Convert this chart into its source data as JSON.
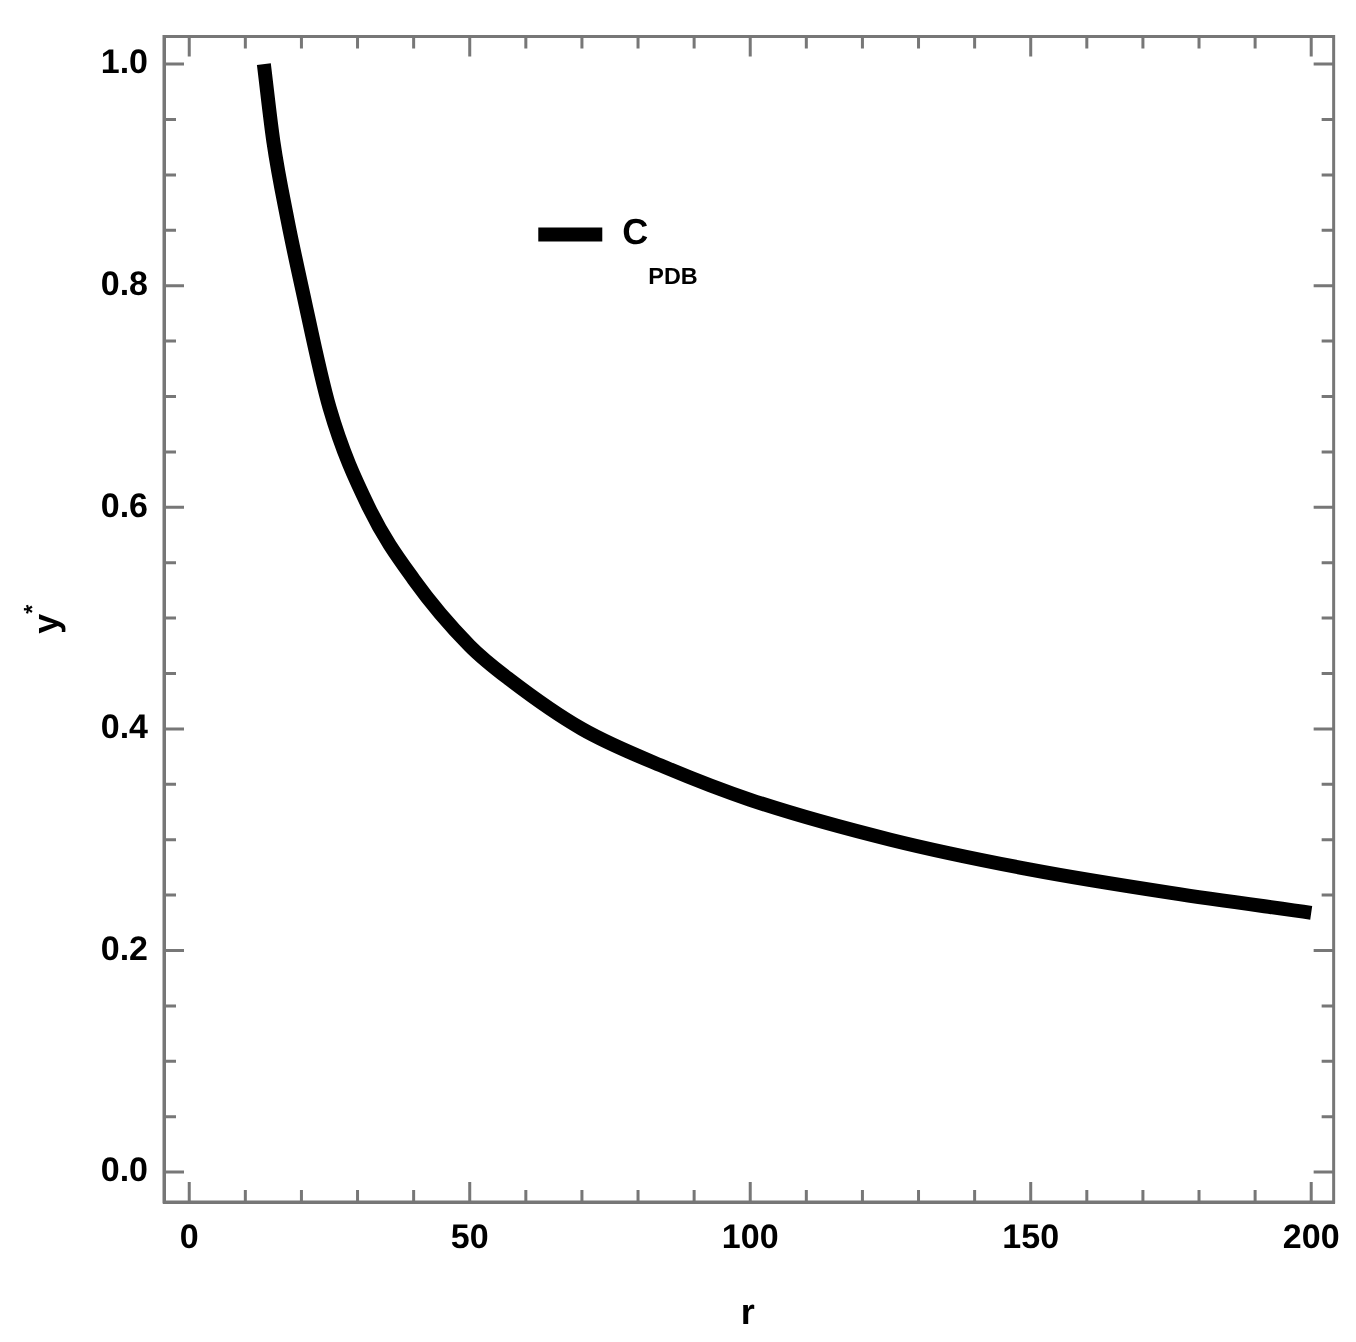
{
  "chart_data": {
    "type": "line",
    "xlabel": "r",
    "ylabel": "y$^{*}$",
    "xlim": [
      -4.5,
      204
    ],
    "ylim": [
      -0.027,
      1.025
    ],
    "xticks": [
      {
        "value": 0,
        "label": "0"
      },
      {
        "value": 10,
        "label": null
      },
      {
        "value": 20,
        "label": null
      },
      {
        "value": 30,
        "label": null
      },
      {
        "value": 40,
        "label": null
      },
      50,
      {
        "value": 60,
        "label": null
      },
      {
        "value": 70,
        "label": null
      },
      {
        "value": 80,
        "label": null
      },
      {
        "value": 90,
        "label": null
      },
      100,
      {
        "value": 110,
        "label": null
      },
      {
        "value": 120,
        "label": null
      },
      {
        "value": 130,
        "label": null
      },
      {
        "value": 140,
        "label": null
      },
      150,
      {
        "value": 160,
        "label": null
      },
      {
        "value": 170,
        "label": null
      },
      {
        "value": 180,
        "label": null
      },
      {
        "value": 190,
        "label": null
      },
      200
    ],
    "yticks": [
      {
        "value": 0,
        "label": "0.0"
      },
      {
        "value": 0.05,
        "label": null
      },
      {
        "value": 0.1,
        "label": null
      },
      {
        "value": 0.15,
        "label": null
      },
      0.2,
      {
        "value": 0.25,
        "label": null
      },
      {
        "value": 0.3,
        "label": null
      },
      {
        "value": 0.35,
        "label": null
      },
      0.4,
      {
        "value": 0.45,
        "label": null
      },
      {
        "value": 0.5,
        "label": null
      },
      {
        "value": 0.55,
        "label": null
      },
      0.6,
      {
        "value": 0.65,
        "label": null
      },
      {
        "value": 0.7,
        "label": null
      },
      {
        "value": 0.75,
        "label": null
      },
      0.8,
      {
        "value": 0.85,
        "label": null
      },
      {
        "value": 0.9,
        "label": null
      },
      {
        "value": 0.95,
        "label": null
      },
      {
        "value": 1,
        "label": "1.0"
      }
    ],
    "grid": false,
    "legend": "top",
    "marker": "none",
    "line_style": "solid",
    "x": [
      13.3,
      15,
      17.5,
      20,
      25,
      32,
      40,
      50,
      57,
      70,
      85,
      100,
      125,
      150,
      175,
      200
    ],
    "series": [
      {
        "name": "C$_{PDB}$",
        "color": "#000000",
        "values": [
          1.0,
          0.93,
          0.86,
          0.8,
          0.69,
          0.6,
          0.535,
          0.475,
          0.445,
          0.4,
          0.365,
          0.336,
          0.3,
          0.273,
          0.252,
          0.234
        ]
      }
    ]
  }
}
